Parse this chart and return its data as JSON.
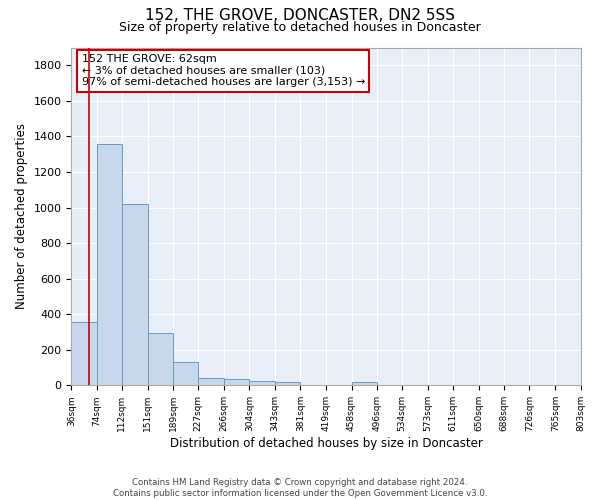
{
  "title": "152, THE GROVE, DONCASTER, DN2 5SS",
  "subtitle": "Size of property relative to detached houses in Doncaster",
  "xlabel": "Distribution of detached houses by size in Doncaster",
  "ylabel": "Number of detached properties",
  "bar_color": "#c8d8ec",
  "bar_edge_color": "#6a9cc0",
  "bg_color": "#e8eef8",
  "grid_color": "#ffffff",
  "vline_x": 62,
  "vline_color": "#cc0000",
  "annotation_text": "152 THE GROVE: 62sqm\n← 3% of detached houses are smaller (103)\n97% of semi-detached houses are larger (3,153) →",
  "annotation_box_color": "#ffffff",
  "annotation_box_edge": "#cc0000",
  "bins": [
    36,
    74,
    112,
    151,
    189,
    227,
    266,
    304,
    343,
    381,
    419,
    458,
    496,
    534,
    573,
    611,
    650,
    688,
    726,
    765,
    803
  ],
  "heights": [
    355,
    1355,
    1020,
    295,
    130,
    40,
    35,
    25,
    20,
    0,
    0,
    20,
    0,
    0,
    0,
    0,
    0,
    0,
    0,
    0
  ],
  "ylim": [
    0,
    1900
  ],
  "yticks": [
    0,
    200,
    400,
    600,
    800,
    1000,
    1200,
    1400,
    1600,
    1800
  ],
  "footer": "Contains HM Land Registry data © Crown copyright and database right 2024.\nContains public sector information licensed under the Open Government Licence v3.0.",
  "tick_labels": [
    "36sqm",
    "74sqm",
    "112sqm",
    "151sqm",
    "189sqm",
    "227sqm",
    "266sqm",
    "304sqm",
    "343sqm",
    "381sqm",
    "419sqm",
    "458sqm",
    "496sqm",
    "534sqm",
    "573sqm",
    "611sqm",
    "650sqm",
    "688sqm",
    "726sqm",
    "765sqm",
    "803sqm"
  ]
}
